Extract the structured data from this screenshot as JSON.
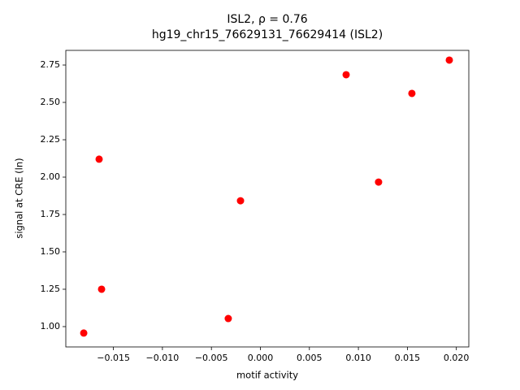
{
  "chart_data": {
    "type": "scatter",
    "title": "ISL2, ρ = 0.76",
    "subtitle": "hg19_chr15_76629131_76629414 (ISL2)",
    "x_label": "motif activity",
    "y_label": "signal at CRE (ln)",
    "color": "#ff0000",
    "x": [
      -0.01803,
      -0.01646,
      -0.01621,
      -0.00328,
      -0.00203,
      0.00875,
      0.01206,
      0.01546,
      0.01928
    ],
    "values": [
      0.957,
      2.12,
      1.25,
      1.054,
      1.842,
      2.685,
      1.967,
      2.56,
      2.783
    ],
    "xlim": [
      -0.01986,
      0.02127
    ],
    "ylim": [
      0.864,
      2.848
    ],
    "xticks": [
      {
        "value": -0.015,
        "label": "−0.015"
      },
      {
        "value": -0.01,
        "label": "−0.010"
      },
      {
        "value": -0.005,
        "label": "−0.005"
      },
      {
        "value": 0,
        "label": "0.000"
      },
      0.005,
      {
        "value": 0.01,
        "label": "0.010"
      },
      0.015,
      {
        "value": 0.02,
        "label": "0.020"
      }
    ],
    "yticks": [
      {
        "value": 1,
        "label": "1.00"
      },
      1.25,
      {
        "value": 1.5,
        "label": "1.50"
      },
      1.75,
      {
        "value": 2,
        "label": "2.00"
      },
      2.25,
      {
        "value": 2.5,
        "label": "2.50"
      },
      2.75
    ]
  }
}
